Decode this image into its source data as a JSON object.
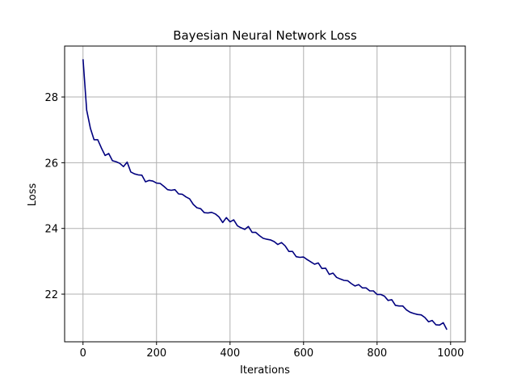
{
  "chart_data": {
    "type": "line",
    "title": "Bayesian Neural Network Loss",
    "xlabel": "Iterations",
    "ylabel": "Loss",
    "xlim": [
      -50,
      1040
    ],
    "ylim": [
      20.55,
      29.55
    ],
    "xticks": [
      0,
      200,
      400,
      600,
      800,
      1000
    ],
    "yticks": [
      22,
      24,
      26,
      28
    ],
    "grid": true,
    "line_color": "#00007f",
    "series": [
      {
        "x": [
          0,
          10,
          20,
          30,
          40,
          50,
          60,
          70,
          80,
          90,
          100,
          110,
          120,
          130,
          140,
          150,
          160,
          170,
          180,
          190,
          200,
          210,
          220,
          230,
          240,
          250,
          260,
          270,
          280,
          290,
          300,
          310,
          320,
          330,
          340,
          350,
          360,
          370,
          380,
          390,
          400,
          410,
          420,
          430,
          440,
          450,
          460,
          470,
          480,
          490,
          500,
          510,
          520,
          530,
          540,
          550,
          560,
          570,
          580,
          590,
          600,
          610,
          620,
          630,
          640,
          650,
          660,
          670,
          680,
          690,
          700,
          710,
          720,
          730,
          740,
          750,
          760,
          770,
          780,
          790,
          800,
          810,
          820,
          830,
          840,
          850,
          860,
          870,
          880,
          890,
          900,
          910,
          920,
          930,
          940,
          950,
          960,
          970,
          980,
          990
        ],
        "values": [
          29.15,
          27.6,
          27.05,
          26.7,
          26.7,
          26.45,
          26.22,
          26.28,
          26.06,
          26.03,
          25.98,
          25.88,
          26.02,
          25.72,
          25.66,
          25.63,
          25.62,
          25.42,
          25.46,
          25.44,
          25.38,
          25.37,
          25.28,
          25.18,
          25.16,
          25.18,
          25.05,
          25.04,
          24.96,
          24.9,
          24.73,
          24.63,
          24.6,
          24.48,
          24.47,
          24.49,
          24.44,
          24.35,
          24.18,
          24.33,
          24.2,
          24.26,
          24.08,
          24.02,
          23.97,
          24.06,
          23.88,
          23.88,
          23.78,
          23.7,
          23.67,
          23.65,
          23.6,
          23.51,
          23.57,
          23.47,
          23.3,
          23.3,
          23.14,
          23.12,
          23.13,
          23.05,
          22.98,
          22.91,
          22.95,
          22.78,
          22.79,
          22.6,
          22.64,
          22.51,
          22.46,
          22.42,
          22.41,
          22.32,
          22.25,
          22.29,
          22.19,
          22.19,
          22.1,
          22.1,
          21.99,
          21.99,
          21.94,
          21.81,
          21.83,
          21.66,
          21.64,
          21.64,
          21.52,
          21.45,
          21.41,
          21.38,
          21.37,
          21.29,
          21.16,
          21.2,
          21.07,
          21.06,
          21.13,
          20.92
        ]
      }
    ]
  }
}
